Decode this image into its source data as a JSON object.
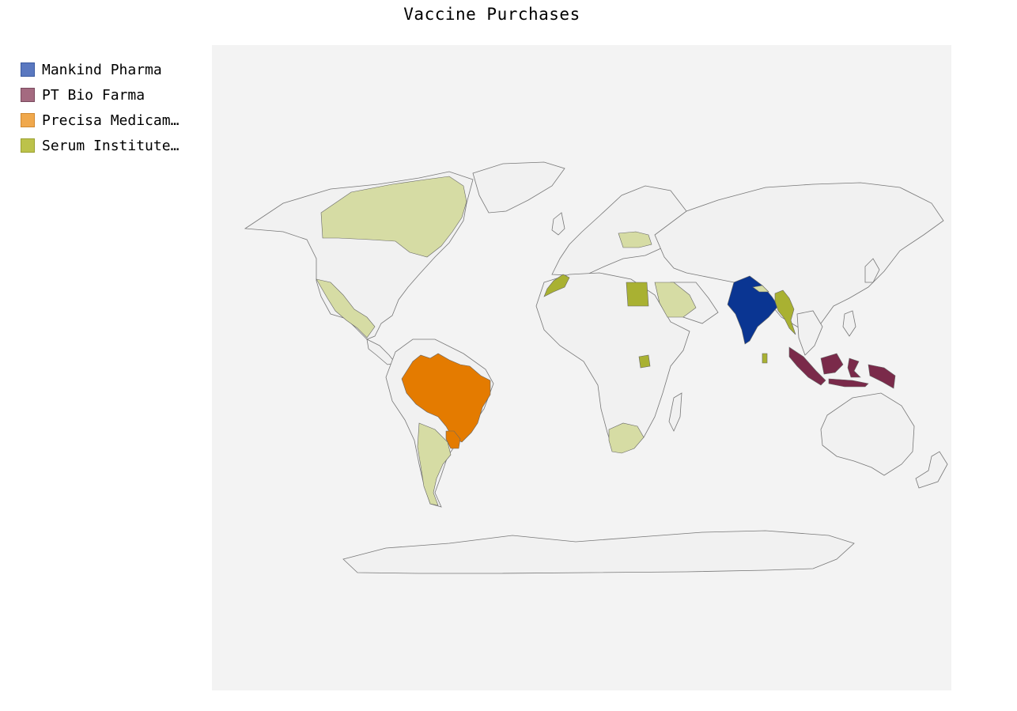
{
  "title": "Vaccine Purchases",
  "legend": [
    {
      "label": "Mankind Pharma",
      "color": "#5a78c0",
      "border": "#3a5aa0"
    },
    {
      "label": "PT Bio Farma",
      "color": "#a46a80",
      "border": "#7a4a5e"
    },
    {
      "label": "Precisa Medicamentos",
      "color": "#f0a84c",
      "border": "#d08830"
    },
    {
      "label": "Serum Institute of India",
      "color": "#bcc24a",
      "border": "#9aa030"
    }
  ],
  "map": {
    "background": "#f3f3f3",
    "land_color": "#f1f1f1",
    "highlighted": [
      {
        "region": "India",
        "supplier": "Mankind Pharma",
        "color": "#0a3592"
      },
      {
        "region": "Indonesia",
        "supplier": "PT Bio Farma",
        "color": "#7a2a4a"
      },
      {
        "region": "Brazil",
        "supplier": "Precisa Medicamentos",
        "color": "#e47b00"
      },
      {
        "region": "Paraguay",
        "supplier": "Precisa Medicamentos",
        "color": "#e47b00"
      },
      {
        "region": "Myanmar",
        "supplier": "Serum Institute of India",
        "color": "#a9b132"
      },
      {
        "region": "Morocco",
        "supplier": "Serum Institute of India",
        "color": "#a9b132"
      },
      {
        "region": "Egypt",
        "supplier": "Serum Institute of India",
        "color": "#a9b132"
      },
      {
        "region": "Uganda",
        "supplier": "Serum Institute of India",
        "color": "#a9b132"
      },
      {
        "region": "Sri Lanka",
        "supplier": "Serum Institute of India",
        "color": "#a9b132"
      },
      {
        "region": "Canada",
        "supplier": "Serum Institute of India",
        "color": "#d6dca4"
      },
      {
        "region": "Mexico",
        "supplier": "Serum Institute of India",
        "color": "#d6dca4"
      },
      {
        "region": "Argentina",
        "supplier": "Serum Institute of India",
        "color": "#d6dca4"
      },
      {
        "region": "Saudi Arabia",
        "supplier": "Serum Institute of India",
        "color": "#d6dca4"
      },
      {
        "region": "South Africa",
        "supplier": "Serum Institute of India",
        "color": "#d6dca4"
      },
      {
        "region": "Ukraine",
        "supplier": "Serum Institute of India",
        "color": "#d6dca4"
      },
      {
        "region": "Nepal",
        "supplier": "Serum Institute of India",
        "color": "#d6dca4"
      }
    ]
  }
}
